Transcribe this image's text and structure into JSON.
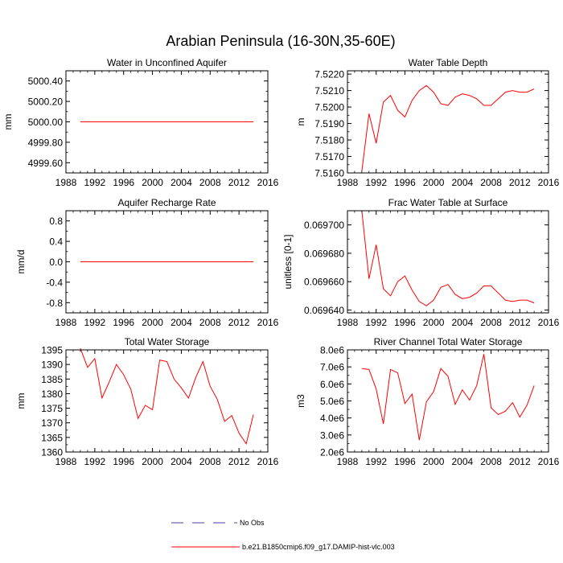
{
  "figure_title": "Arabian Peninsula (16-30N,35-60E)",
  "legend": [
    {
      "label": "No Obs",
      "color": "#4b3f9c",
      "style": "dashed"
    },
    {
      "label": "b.e21.B1850cmip6.f09_g17.DAMIP-hist-vlc.003",
      "color": "#ff0000",
      "style": "solid"
    }
  ],
  "chart_data": [
    {
      "type": "line",
      "title": "Water in Unconfined Aquifer",
      "xlabel": "",
      "ylabel": "mm",
      "xlim": [
        1988,
        2016
      ],
      "ylim": [
        4999.5,
        5000.5
      ],
      "xticks": [
        1988,
        1992,
        1996,
        2000,
        2004,
        2008,
        2012,
        2016
      ],
      "xtick_labels": [
        "1988",
        "1992",
        "1996",
        "2000",
        "2004",
        "2008",
        "2012",
        "2016"
      ],
      "yticks": [
        4999.6,
        4999.8,
        5000.0,
        5000.2,
        5000.4
      ],
      "ytick_labels": [
        "4999.60",
        "4999.80",
        "5000.00",
        "5000.20",
        "5000.40"
      ],
      "series": [
        {
          "color": "#ff0000",
          "x": [
            1990,
            1991,
            1992,
            1993,
            1994,
            1995,
            1996,
            1997,
            1998,
            1999,
            2000,
            2001,
            2002,
            2003,
            2004,
            2005,
            2006,
            2007,
            2008,
            2009,
            2010,
            2011,
            2012,
            2013,
            2014
          ],
          "y": [
            5000,
            5000,
            5000,
            5000,
            5000,
            5000,
            5000,
            5000,
            5000,
            5000,
            5000,
            5000,
            5000,
            5000,
            5000,
            5000,
            5000,
            5000,
            5000,
            5000,
            5000,
            5000,
            5000,
            5000,
            5000
          ]
        }
      ]
    },
    {
      "type": "line",
      "title": "Water Table Depth",
      "xlabel": "",
      "ylabel": "m",
      "xlim": [
        1988,
        2016
      ],
      "ylim": [
        7.516,
        7.5222
      ],
      "xticks": [
        1988,
        1992,
        1996,
        2000,
        2004,
        2008,
        2012,
        2016
      ],
      "xtick_labels": [
        "1988",
        "1992",
        "1996",
        "2000",
        "2004",
        "2008",
        "2012",
        "2016"
      ],
      "yticks": [
        7.516,
        7.517,
        7.518,
        7.519,
        7.52,
        7.521,
        7.522
      ],
      "ytick_labels": [
        "7.5160",
        "7.5170",
        "7.5180",
        "7.5190",
        "7.5200",
        "7.5210",
        "7.5220"
      ],
      "series": [
        {
          "color": "#ff0000",
          "x": [
            1990,
            1991,
            1992,
            1993,
            1994,
            1995,
            1996,
            1997,
            1998,
            1999,
            2000,
            2001,
            2002,
            2003,
            2004,
            2005,
            2006,
            2007,
            2008,
            2009,
            2010,
            2011,
            2012,
            2013,
            2014
          ],
          "y": [
            7.5161,
            7.5196,
            7.5178,
            7.5203,
            7.5207,
            7.5198,
            7.5194,
            7.5204,
            7.521,
            7.5213,
            7.5209,
            7.5202,
            7.5201,
            7.5206,
            7.5208,
            7.5207,
            7.5205,
            7.5201,
            7.5201,
            7.5205,
            7.5209,
            7.521,
            7.5209,
            7.5209,
            7.5211
          ]
        }
      ]
    },
    {
      "type": "line",
      "title": "Aquifer Recharge Rate",
      "xlabel": "",
      "ylabel": "mm/d",
      "xlim": [
        1988,
        2016
      ],
      "ylim": [
        -1.0,
        1.0
      ],
      "xticks": [
        1988,
        1992,
        1996,
        2000,
        2004,
        2008,
        2012,
        2016
      ],
      "xtick_labels": [
        "1988",
        "1992",
        "1996",
        "2000",
        "2004",
        "2008",
        "2012",
        "2016"
      ],
      "yticks": [
        -0.8,
        -0.4,
        0.0,
        0.4,
        0.8
      ],
      "ytick_labels": [
        "-0.8",
        "-0.4",
        "0.0",
        "0.4",
        "0.8"
      ],
      "series": [
        {
          "color": "#ff0000",
          "x": [
            1990,
            1991,
            1992,
            1993,
            1994,
            1995,
            1996,
            1997,
            1998,
            1999,
            2000,
            2001,
            2002,
            2003,
            2004,
            2005,
            2006,
            2007,
            2008,
            2009,
            2010,
            2011,
            2012,
            2013,
            2014
          ],
          "y": [
            0,
            0,
            0,
            0,
            0,
            0,
            0,
            0,
            0,
            0,
            0,
            0,
            0,
            0,
            0,
            0,
            0,
            0,
            0,
            0,
            0,
            0,
            0,
            0,
            0
          ]
        }
      ]
    },
    {
      "type": "line",
      "title": "Frac Water Table at Surface",
      "xlabel": "",
      "ylabel": "unitless [0-1]",
      "xlim": [
        1988,
        2016
      ],
      "ylim": [
        0.069638,
        0.06971
      ],
      "xticks": [
        1988,
        1992,
        1996,
        2000,
        2004,
        2008,
        2012,
        2016
      ],
      "xtick_labels": [
        "1988",
        "1992",
        "1996",
        "2000",
        "2004",
        "2008",
        "2012",
        "2016"
      ],
      "yticks": [
        0.06964,
        0.06966,
        0.06968,
        0.0697
      ],
      "ytick_labels": [
        "0.069640",
        "0.069660",
        "0.069680",
        "0.069700"
      ],
      "series": [
        {
          "color": "#ff0000",
          "x": [
            1990,
            1991,
            1992,
            1993,
            1994,
            1995,
            1996,
            1997,
            1998,
            1999,
            2000,
            2001,
            2002,
            2003,
            2004,
            2005,
            2006,
            2007,
            2008,
            2009,
            2010,
            2011,
            2012,
            2013,
            2014
          ],
          "y": [
            0.06971,
            0.069662,
            0.069686,
            0.069655,
            0.06965,
            0.06966,
            0.069664,
            0.069654,
            0.069646,
            0.069643,
            0.069647,
            0.069656,
            0.069658,
            0.069651,
            0.069648,
            0.069649,
            0.069652,
            0.069657,
            0.069657,
            0.069652,
            0.069647,
            0.069646,
            0.069647,
            0.069647,
            0.069645
          ]
        }
      ]
    },
    {
      "type": "line",
      "title": "Total Water Storage",
      "xlabel": "",
      "ylabel": "mm",
      "xlim": [
        1988,
        2016
      ],
      "ylim": [
        1360,
        1395
      ],
      "xticks": [
        1988,
        1992,
        1996,
        2000,
        2004,
        2008,
        2012,
        2016
      ],
      "xtick_labels": [
        "1988",
        "1992",
        "1996",
        "2000",
        "2004",
        "2008",
        "2012",
        "2016"
      ],
      "yticks": [
        1360,
        1365,
        1370,
        1375,
        1380,
        1385,
        1390,
        1395
      ],
      "ytick_labels": [
        "1360",
        "1365",
        "1370",
        "1375",
        "1380",
        "1385",
        "1390",
        "1395"
      ],
      "series": [
        {
          "color": "#ff0000",
          "x": [
            1990,
            1991,
            1992,
            1993,
            1994,
            1995,
            1996,
            1997,
            1998,
            1999,
            2000,
            2001,
            2002,
            2003,
            2004,
            2005,
            2006,
            2007,
            2008,
            2009,
            2010,
            2011,
            2012,
            2013,
            2014
          ],
          "y": [
            1395.5,
            1389,
            1392,
            1378.5,
            1384,
            1390,
            1386.5,
            1381.5,
            1371.5,
            1376,
            1374.5,
            1391.5,
            1391,
            1385,
            1382,
            1378.5,
            1385.5,
            1391,
            1382.5,
            1378,
            1370.5,
            1372.5,
            1366.5,
            1362.8,
            1372.8
          ]
        }
      ]
    },
    {
      "type": "line",
      "title": "River Channel Total Water Storage",
      "xlabel": "",
      "ylabel": "m3",
      "xlim": [
        1988,
        2016
      ],
      "ylim": [
        2000000,
        8000000
      ],
      "xticks": [
        1988,
        1992,
        1996,
        2000,
        2004,
        2008,
        2012,
        2016
      ],
      "xtick_labels": [
        "1988",
        "1992",
        "1996",
        "2000",
        "2004",
        "2008",
        "2012",
        "2016"
      ],
      "yticks": [
        2000000,
        3000000,
        4000000,
        5000000,
        6000000,
        7000000,
        8000000
      ],
      "ytick_labels": [
        "2.0e6",
        "3.0e6",
        "4.0e6",
        "5.0e6",
        "6.0e6",
        "7.0e6",
        "8.0e6"
      ],
      "series": [
        {
          "color": "#ff0000",
          "x": [
            1990,
            1991,
            1992,
            1993,
            1994,
            1995,
            1996,
            1997,
            1998,
            1999,
            2000,
            2001,
            2002,
            2003,
            2004,
            2005,
            2006,
            2007,
            2008,
            2009,
            2010,
            2011,
            2012,
            2013,
            2014
          ],
          "y": [
            6900000,
            6850000,
            5700000,
            3650000,
            6850000,
            6650000,
            4850000,
            5400000,
            2700000,
            4950000,
            5550000,
            6900000,
            6450000,
            4800000,
            5650000,
            5050000,
            5900000,
            7750000,
            4600000,
            4200000,
            4400000,
            4900000,
            4050000,
            4750000,
            5900000
          ]
        }
      ]
    }
  ]
}
